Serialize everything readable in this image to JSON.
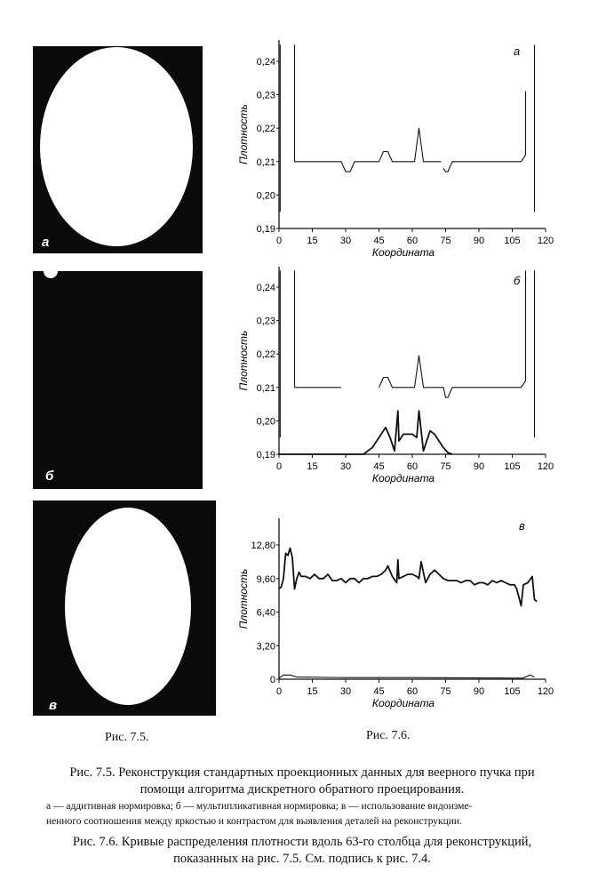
{
  "figure_7_5": {
    "ref_label": "Рис. 7.5.",
    "panels": [
      {
        "label": "а"
      },
      {
        "label": "б"
      },
      {
        "label": "в"
      }
    ]
  },
  "figure_7_6": {
    "ref_label": "Рис. 7.6."
  },
  "chart_data": [
    {
      "type": "line",
      "panel_label": "а",
      "xlabel": "Координата",
      "ylabel": "Плотность",
      "xlim": [
        0,
        120
      ],
      "ylim": [
        0.19,
        0.245
      ],
      "xticks": [
        "0",
        "15",
        "30",
        "45",
        "60",
        "75",
        "90",
        "105",
        "120"
      ],
      "yticks": [
        "0,19",
        "0,20",
        "0,21",
        "0,22",
        "0,23",
        "0,24"
      ],
      "ytick_values": [
        0.19,
        0.2,
        0.21,
        0.22,
        0.23,
        0.24
      ],
      "series": [
        {
          "x": [
            7,
            7,
            28,
            30,
            32,
            34,
            45,
            47,
            49,
            51,
            61,
            63,
            65,
            73
          ],
          "y": [
            0.245,
            0.21,
            0.21,
            0.207,
            0.207,
            0.21,
            0.21,
            0.213,
            0.213,
            0.21,
            0.21,
            0.22,
            0.21,
            0.21
          ]
        },
        {
          "x": [
            74,
            75,
            76,
            78,
            109,
            111,
            111
          ],
          "y": [
            0.208,
            0.207,
            0.207,
            0.21,
            0.21,
            0.212,
            0.231
          ]
        },
        {
          "x": [
            0.5,
            0.5
          ],
          "y": [
            0.245,
            0.195
          ]
        },
        {
          "x": [
            115,
            115
          ],
          "y": [
            0.245,
            0.195
          ]
        }
      ]
    },
    {
      "type": "line",
      "panel_label": "б",
      "xlabel": "Координата",
      "ylabel": "Плотность",
      "xlim": [
        0,
        120
      ],
      "ylim": [
        0.19,
        0.245
      ],
      "xticks": [
        "0",
        "15",
        "30",
        "45",
        "60",
        "75",
        "90",
        "105",
        "120"
      ],
      "yticks": [
        "0,19",
        "0,20",
        "0,21",
        "0,22",
        "0,23",
        "0,24"
      ],
      "ytick_values": [
        0.19,
        0.2,
        0.21,
        0.22,
        0.23,
        0.24
      ],
      "series": [
        {
          "x": [
            7,
            7,
            28
          ],
          "y": [
            0.245,
            0.21,
            0.21
          ]
        },
        {
          "x": [
            45,
            47,
            49,
            51,
            61,
            63,
            65,
            74,
            75,
            76,
            78,
            109,
            111,
            111
          ],
          "y": [
            0.21,
            0.213,
            0.213,
            0.21,
            0.21,
            0.2195,
            0.21,
            0.21,
            0.207,
            0.207,
            0.21,
            0.21,
            0.212,
            0.245
          ]
        },
        {
          "x": [
            0,
            38,
            40,
            42,
            44,
            46,
            48,
            50,
            52,
            53.5,
            54,
            56,
            58,
            60,
            62,
            63,
            65,
            68,
            70,
            72,
            74,
            76,
            78
          ],
          "y": [
            0.19,
            0.19,
            0.191,
            0.192,
            0.194,
            0.196,
            0.198,
            0.195,
            0.191,
            0.203,
            0.194,
            0.196,
            0.196,
            0.196,
            0.195,
            0.203,
            0.191,
            0.197,
            0.196,
            0.194,
            0.192,
            0.1905,
            0.19
          ]
        },
        {
          "x": [
            0.5,
            0.5
          ],
          "y": [
            0.245,
            0.195
          ]
        },
        {
          "x": [
            115,
            115
          ],
          "y": [
            0.245,
            0.195
          ]
        }
      ]
    },
    {
      "type": "line",
      "panel_label": "в",
      "xlabel": "Координата",
      "ylabel": "Плотность",
      "xlim": [
        0,
        120
      ],
      "ylim": [
        0,
        14.4
      ],
      "xticks": [
        "0",
        "15",
        "30",
        "45",
        "60",
        "75",
        "90",
        "105",
        "120"
      ],
      "yticks": [
        "0",
        "3,20",
        "6,40",
        "9,60",
        "12,80"
      ],
      "ytick_values": [
        0,
        3.2,
        6.4,
        9.6,
        12.8
      ],
      "series": [
        {
          "x": [
            0,
            1,
            2,
            3,
            4,
            5,
            6,
            7,
            8,
            9,
            10,
            12,
            14,
            16,
            18,
            20,
            22,
            24,
            26,
            28,
            30,
            32,
            34,
            36,
            38,
            40,
            42,
            44,
            46,
            48,
            49,
            51,
            53,
            53.5,
            54,
            56,
            58,
            60,
            62,
            63,
            64,
            66,
            68,
            70,
            72,
            74,
            76,
            78,
            80,
            82,
            84,
            86,
            88,
            90,
            92,
            94,
            96,
            98,
            100,
            102,
            104,
            106,
            107,
            109,
            110,
            112,
            114,
            115,
            116
          ],
          "y": [
            8.6,
            8.8,
            9.6,
            12.0,
            11.8,
            12.5,
            11.6,
            8.6,
            9.6,
            10.2,
            9.8,
            9.8,
            9.6,
            10.0,
            9.6,
            9.6,
            10.0,
            9.4,
            9.4,
            9.6,
            9.2,
            9.6,
            9.6,
            9.2,
            9.6,
            9.6,
            9.8,
            9.8,
            10.0,
            10.4,
            10.8,
            9.8,
            9.2,
            11.4,
            9.6,
            9.8,
            10.0,
            10.0,
            9.8,
            9.6,
            11.2,
            9.2,
            10.0,
            10.4,
            10.0,
            9.6,
            9.4,
            9.4,
            9.4,
            9.2,
            9.4,
            9.4,
            9.0,
            9.2,
            9.2,
            9.0,
            9.4,
            9.2,
            9.4,
            9.2,
            9.0,
            9.0,
            8.6,
            7.0,
            9.0,
            9.2,
            9.8,
            7.6,
            7.4
          ]
        },
        {
          "x": [
            0,
            2,
            5,
            8,
            30,
            60,
            90,
            110,
            113,
            115
          ],
          "y": [
            0.1,
            0.4,
            0.4,
            0.2,
            0.15,
            0.15,
            0.12,
            0.1,
            0.4,
            0.2
          ]
        }
      ]
    }
  ],
  "captions": {
    "fig_7_5_title_line1": "Рис. 7.5. Реконструкция стандартных проекционных данных для веерного пучка при",
    "fig_7_5_title_line2": "помощи алгоритма дискретного обратного проецирования.",
    "fig_7_5_note_line1": "а — аддитивная нормировка; б — мультипликативная нормировка; в — использование видоизме-",
    "fig_7_5_note_line2": "ненного соотношения между яркостью и контрастом для выявления деталей на реконструкции.",
    "fig_7_6_title_line1": "Рис. 7.6. Кривые распределения плотности вдоль 63-го столбца для реконструкций,",
    "fig_7_6_title_line2": "показанных на рис. 7.5. См. подпись к рис. 7.4."
  }
}
